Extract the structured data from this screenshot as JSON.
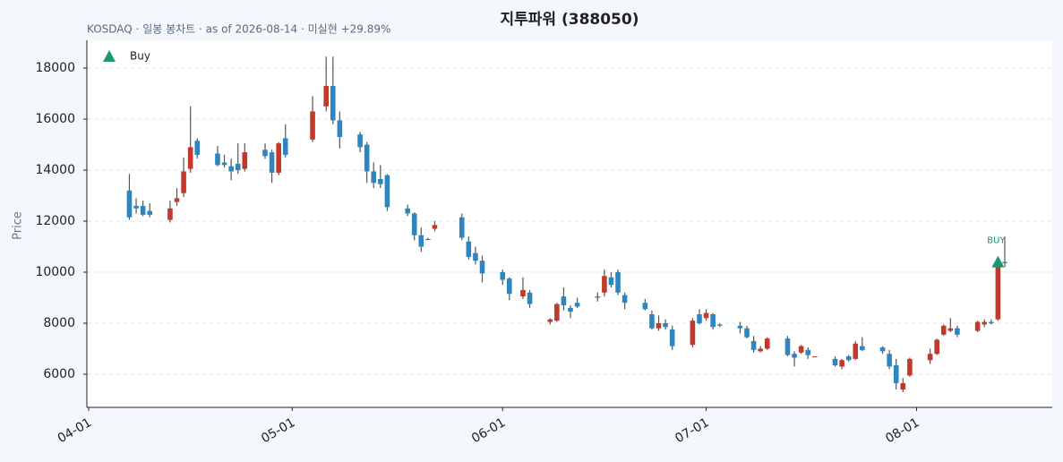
{
  "chart_data": {
    "type": "candlestick",
    "title": "지투파워 (388050)",
    "subtitle": "KOSDAQ · 일봉 봉차트 · as of 2026-08-14 · 미실현 +29.89%",
    "y_label": "Price",
    "up_color": "#c0392b",
    "down_color": "#2e86c1",
    "wick_color": "#555555",
    "grid": true,
    "legend": "upper left",
    "xlim": [
      "04-01",
      "08-21"
    ],
    "xticks": [
      "04-01",
      "05-01",
      "06-01",
      "07-01",
      "08-01"
    ],
    "ylim": [
      4700,
      19090
    ],
    "yticks": [
      6000,
      8000,
      10000,
      12000,
      14000,
      16000,
      18000
    ],
    "x": [
      "04-07",
      "04-08",
      "04-09",
      "04-10",
      "04-13",
      "04-14",
      "04-15",
      "04-16",
      "04-17",
      "04-20",
      "04-21",
      "04-22",
      "04-23",
      "04-24",
      "04-27",
      "04-28",
      "04-29",
      "04-30",
      "05-04",
      "05-06",
      "05-07",
      "05-08",
      "05-11",
      "05-12",
      "05-13",
      "05-14",
      "05-15",
      "05-18",
      "05-19",
      "05-20",
      "05-21",
      "05-22",
      "05-26",
      "05-27",
      "05-28",
      "05-29",
      "06-01",
      "06-02",
      "06-04",
      "06-05",
      "06-08",
      "06-09",
      "06-10",
      "06-11",
      "06-12",
      "06-15",
      "06-16",
      "06-17",
      "06-18",
      "06-19",
      "06-22",
      "06-23",
      "06-24",
      "06-25",
      "06-26",
      "06-29",
      "06-30",
      "07-01",
      "07-02",
      "07-03",
      "07-06",
      "07-07",
      "07-08",
      "07-09",
      "07-10",
      "07-13",
      "07-14",
      "07-15",
      "07-16",
      "07-17",
      "07-20",
      "07-21",
      "07-22",
      "07-23",
      "07-24",
      "07-27",
      "07-28",
      "07-29",
      "07-30",
      "07-31",
      "08-03",
      "08-04",
      "08-05",
      "08-06",
      "08-07",
      "08-10",
      "08-11",
      "08-12",
      "08-13",
      "08-14"
    ],
    "open": [
      13200,
      12600,
      12600,
      12400,
      12050,
      12750,
      13100,
      14050,
      15150,
      14650,
      14300,
      14150,
      14250,
      14050,
      14800,
      14700,
      13900,
      15250,
      15200,
      16500,
      17300,
      15950,
      15400,
      15000,
      13950,
      13650,
      13800,
      12500,
      12300,
      11450,
      11300,
      11700,
      12150,
      11200,
      10750,
      10450,
      10000,
      9750,
      9050,
      9200,
      8050,
      8100,
      9050,
      8600,
      8800,
      9050,
      9200,
      9800,
      10000,
      9100,
      8800,
      8350,
      7800,
      8000,
      7750,
      7150,
      8350,
      8200,
      8350,
      7950,
      7900,
      7800,
      7300,
      6900,
      7000,
      7400,
      6800,
      6850,
      6950,
      6700,
      6600,
      6300,
      6700,
      6600,
      7100,
      7050,
      6800,
      6350,
      5400,
      5950,
      6550,
      6800,
      7550,
      7700,
      7800,
      7700,
      7950,
      8050,
      8150,
      10400
    ],
    "high": [
      13850,
      12900,
      12800,
      12700,
      12800,
      13300,
      14500,
      16500,
      15250,
      14950,
      14600,
      14450,
      15050,
      15050,
      15050,
      14800,
      15100,
      15800,
      16900,
      18450,
      18450,
      16300,
      15500,
      15100,
      14300,
      14200,
      13850,
      12650,
      12350,
      11750,
      11350,
      12000,
      12300,
      11400,
      11000,
      10650,
      10100,
      9800,
      9800,
      9300,
      8200,
      8800,
      9400,
      8700,
      9000,
      9200,
      10100,
      10000,
      10100,
      9200,
      8950,
      8500,
      8300,
      8150,
      7900,
      8200,
      8550,
      8550,
      8400,
      8000,
      8050,
      7900,
      7500,
      7100,
      7450,
      7500,
      6900,
      7150,
      7050,
      6700,
      6700,
      6600,
      6750,
      7300,
      7450,
      7100,
      6950,
      6600,
      5850,
      6650,
      7000,
      7400,
      7950,
      8200,
      7900,
      8100,
      8150,
      8150,
      10300,
      11400
    ],
    "low": [
      12050,
      12300,
      12200,
      12150,
      11950,
      12600,
      12950,
      13900,
      14450,
      14150,
      14100,
      13600,
      13850,
      13950,
      14450,
      13500,
      13800,
      14500,
      15100,
      16300,
      15800,
      14850,
      14700,
      13500,
      13300,
      13300,
      12400,
      12200,
      11250,
      10800,
      11250,
      11600,
      11250,
      10500,
      10300,
      9600,
      9500,
      8900,
      8950,
      8600,
      7950,
      8050,
      8500,
      8200,
      8600,
      8850,
      9050,
      9400,
      9100,
      8550,
      8500,
      7750,
      7700,
      7750,
      6950,
      7050,
      7950,
      8100,
      7750,
      7850,
      7600,
      7400,
      6850,
      6850,
      6950,
      6700,
      6300,
      6800,
      6600,
      6700,
      6300,
      6200,
      6500,
      6550,
      6900,
      6800,
      6200,
      5400,
      5300,
      5900,
      6400,
      6750,
      7500,
      7650,
      7450,
      7650,
      7850,
      7950,
      8100,
      10200
    ],
    "close": [
      12150,
      12500,
      12250,
      12250,
      12500,
      12900,
      13950,
      14900,
      14600,
      14200,
      14200,
      13950,
      14000,
      14700,
      14550,
      13900,
      15050,
      14600,
      16300,
      17300,
      15950,
      15300,
      14900,
      13950,
      13500,
      13450,
      12550,
      12300,
      11450,
      11000,
      11300,
      11850,
      11350,
      10600,
      10450,
      9950,
      9700,
      9150,
      9300,
      8750,
      8150,
      8750,
      8700,
      8450,
      8650,
      9000,
      9850,
      9500,
      9200,
      8800,
      8550,
      7800,
      8000,
      7850,
      7100,
      8100,
      8000,
      8400,
      7850,
      7900,
      7800,
      7450,
      6950,
      7000,
      7400,
      6750,
      6650,
      7100,
      6750,
      6700,
      6350,
      6550,
      6550,
      7200,
      6950,
      6900,
      6300,
      5650,
      5650,
      6600,
      6800,
      7350,
      7900,
      7800,
      7550,
      8050,
      8050,
      8000,
      10200,
      10350
    ],
    "buy": {
      "name": "Buy",
      "color": "#1a9a6c",
      "x": [
        "08-13"
      ],
      "y": [
        10400
      ],
      "labels": [
        "BUY"
      ]
    }
  }
}
